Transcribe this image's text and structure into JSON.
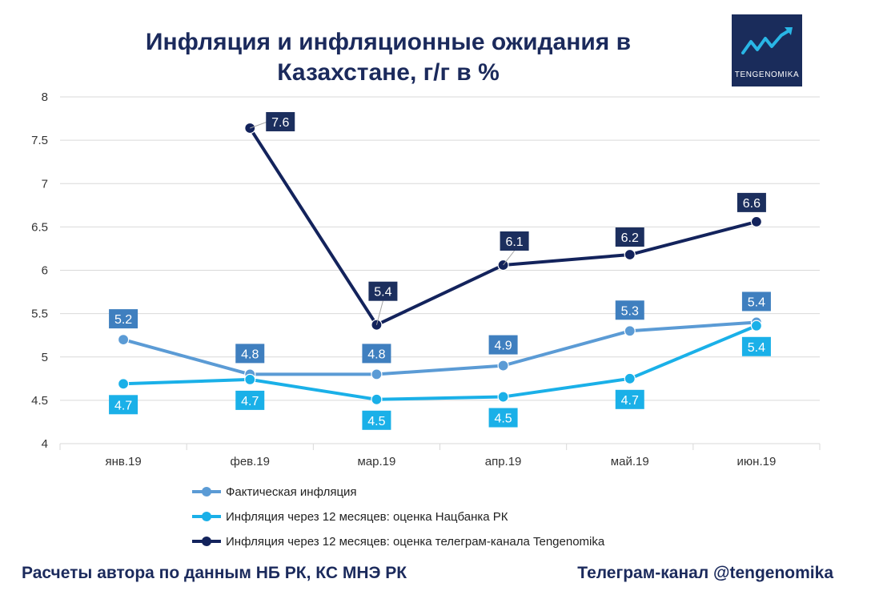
{
  "title": "Инфляция и инфляционные ожидания в Казахстане, г/г в %",
  "logo": {
    "text": "TENGENOMIKA",
    "icon": "trend-arrow-icon",
    "bg": "#1a2c5b",
    "accent": "#29b6e6"
  },
  "footer": {
    "left": "Расчеты автора по данным НБ РК, КС МНЭ РК",
    "right": "Телеграм-канал @tengenomika"
  },
  "chart_data": {
    "type": "line",
    "title": "Инфляция и инфляционные ожидания в Казахстане, г/г в %",
    "categories": [
      "янв.19",
      "фев.19",
      "мар.19",
      "апр.19",
      "май.19",
      "июн.19"
    ],
    "ylim": [
      4,
      8
    ],
    "yticks": [
      "4",
      "4.5",
      "5",
      "5.5",
      "6",
      "6.5",
      "7",
      "7.5",
      "8"
    ],
    "grid": true,
    "legend_position": "bottom",
    "series": [
      {
        "name": "Фактическая инфляция",
        "color": "#5b9bd5",
        "label_bg": "#3f7fbf",
        "values": [
          5.2,
          4.8,
          4.8,
          4.9,
          5.3,
          5.4
        ],
        "labels": [
          "5.2",
          "4.8",
          "4.8",
          "4.9",
          "5.3",
          "5.4"
        ]
      },
      {
        "name": "Инфляция через 12 месяцев: оценка Нацбанка РК",
        "color": "#1ab0e8",
        "label_bg": "#1ab0e8",
        "values": [
          4.69,
          4.74,
          4.51,
          4.54,
          4.75,
          5.36
        ],
        "labels": [
          "4.7",
          "4.7",
          "4.5",
          "4.5",
          "4.7",
          "5.4"
        ]
      },
      {
        "name": "Инфляция через 12 месяцев: оценка телеграм-канала Tengenomika",
        "color": "#13235c",
        "label_bg": "#1c2f5e",
        "values": [
          null,
          7.64,
          5.37,
          6.06,
          6.18,
          6.56
        ],
        "labels": [
          null,
          "7.6",
          "5.4",
          "6.1",
          "6.2",
          "6.6"
        ]
      }
    ]
  }
}
